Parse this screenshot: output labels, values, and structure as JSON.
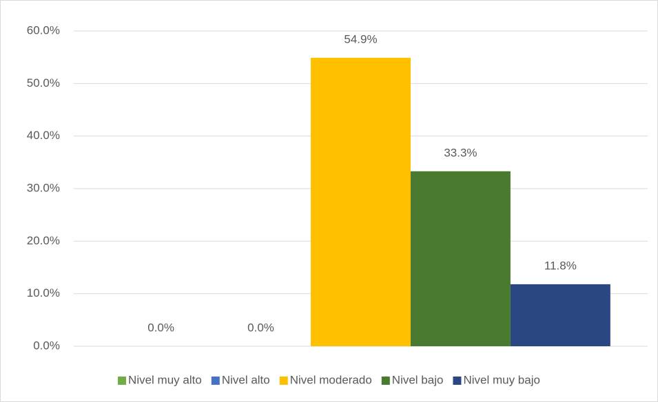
{
  "chart_data": {
    "type": "bar",
    "categories": [
      null
    ],
    "series": [
      {
        "name": "Nivel muy alto",
        "color": "#70ad47",
        "values": [
          0
        ],
        "value_labels": [
          "0.0%"
        ]
      },
      {
        "name": "Nivel alto",
        "color": "#4472c4",
        "values": [
          0
        ],
        "value_labels": [
          "0.0%"
        ]
      },
      {
        "name": "Nivel moderado",
        "color": "#ffc000",
        "values": [
          54.9
        ],
        "value_labels": [
          "54.9%"
        ]
      },
      {
        "name": "Nivel bajo",
        "color": "#4a7a2f",
        "values": [
          33.3
        ],
        "value_labels": [
          "33.3%"
        ]
      },
      {
        "name": "Nivel muy bajo",
        "color": "#2b4783",
        "values": [
          11.8
        ],
        "value_labels": [
          "11.8%"
        ]
      }
    ],
    "ylim": [
      0,
      60
    ],
    "yticks": [
      {
        "value": 0,
        "label": "0.0%"
      },
      {
        "value": 10,
        "label": "10.0%"
      },
      {
        "value": 20,
        "label": "20.0%"
      },
      {
        "value": 30,
        "label": "30.0%"
      },
      {
        "value": 40,
        "label": "40.0%"
      },
      {
        "value": 50,
        "label": "50.0%"
      },
      {
        "value": 60,
        "label": "60.0%"
      }
    ],
    "grid": true,
    "legend": "bottom"
  }
}
